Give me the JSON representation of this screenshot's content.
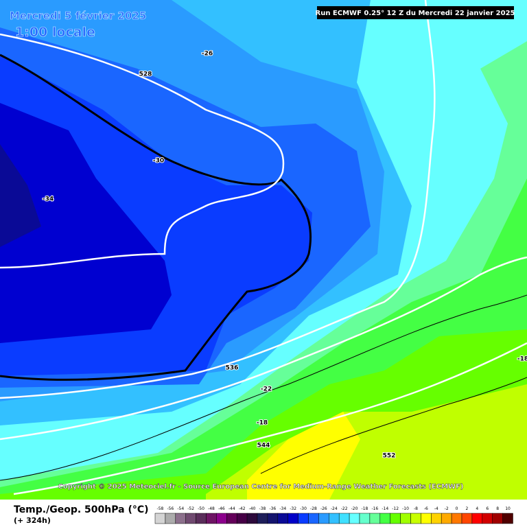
{
  "header": {
    "date": "Mercredi 5 février 2025",
    "time": "1:00 locale",
    "run": "Run ECMWF 0.25° 12 Z du Mercredi 22 janvier 2025"
  },
  "contour_labels": [
    -26,
    528,
    -30,
    -34,
    536,
    -22,
    -18,
    544,
    552,
    -18
  ],
  "copyright": "Copyright © 2025 Meteociel.fr - Source European Centre for Medium-Range Weather Forecasts (ECMWF)",
  "footer": {
    "title": "Temp./Geop. 500hPa (°C)",
    "lead": "(+ 324h)"
  },
  "scale": {
    "values": [
      -58,
      -56,
      -54,
      -52,
      -50,
      -48,
      -46,
      -44,
      -42,
      -40,
      -38,
      -36,
      -34,
      -32,
      -30,
      -28,
      -26,
      -24,
      -22,
      -20,
      -18,
      -16,
      -14,
      -12,
      -10,
      -8,
      -6,
      -4,
      -2,
      0,
      2,
      4,
      6,
      8,
      10
    ],
    "colors": [
      "#d4d4d4",
      "#acacac",
      "#8c708c",
      "#704a70",
      "#5a2d5a",
      "#6e1464",
      "#8c008c",
      "#64005a",
      "#460046",
      "#2d0a3c",
      "#1e1e5a",
      "#14146e",
      "#0a0a96",
      "#0000c8",
      "#0a3cff",
      "#1a66ff",
      "#2a9bff",
      "#33c0ff",
      "#40e0ff",
      "#66ffff",
      "#66ffcc",
      "#66ff99",
      "#44ff44",
      "#66ff00",
      "#a0ff00",
      "#c8ff00",
      "#ffff00",
      "#ffd200",
      "#ffaa00",
      "#ff7800",
      "#ff4600",
      "#ff0000",
      "#d20000",
      "#a00000",
      "#500000"
    ]
  }
}
